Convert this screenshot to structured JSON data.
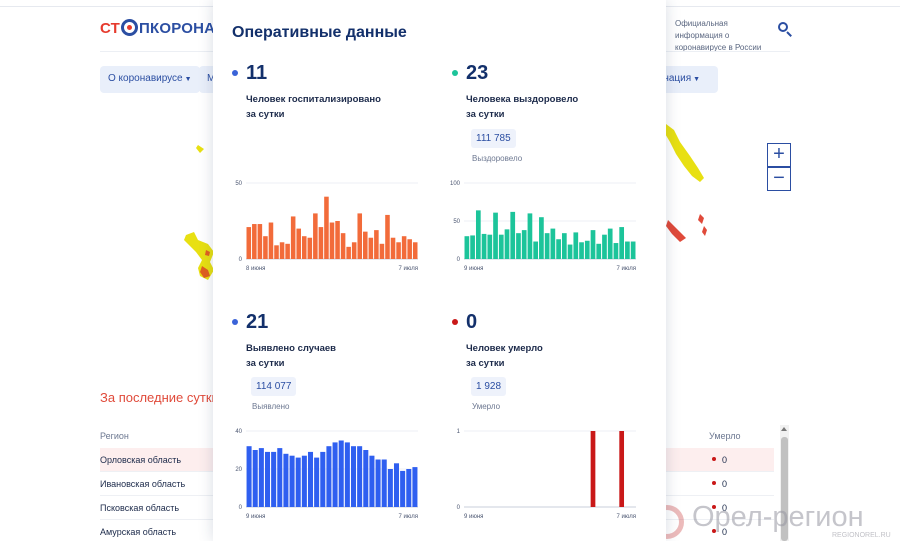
{
  "header": {
    "logo_prefix": "СТ",
    "logo_suffix": "ПКОРОНАВ",
    "official_info": "Официальная информация о коронавирусе в России"
  },
  "nav": {
    "about": "О коронавирусе",
    "m": "М",
    "vaccination": "цинация"
  },
  "map": {
    "zoom_in": "+",
    "zoom_out": "−"
  },
  "table": {
    "section_title": "За последние сутки",
    "col_region": "Регион",
    "col_deaths": "Умерло",
    "rows": [
      {
        "region": "Орловская область",
        "deaths": "0",
        "highlight": true
      },
      {
        "region": "Ивановская область",
        "deaths": "0",
        "highlight": false
      },
      {
        "region": "Псковская область",
        "deaths": "0",
        "highlight": false
      },
      {
        "region": "Амурская область",
        "deaths": "0",
        "highlight": false
      }
    ]
  },
  "popup": {
    "title": "Оперативные данные",
    "stats": [
      {
        "number": "11",
        "desc_line1": "Человек госпитализировано",
        "desc_line2": "за сутки",
        "total": "",
        "total_caption": "",
        "color": "#3a63d8"
      },
      {
        "number": "23",
        "desc_line1": "Человека выздоровело",
        "desc_line2": "за сутки",
        "total": "111 785",
        "total_caption": "Выздоровело",
        "color": "#1cc49a"
      },
      {
        "number": "21",
        "desc_line1": "Выявлено случаев",
        "desc_line2": "за сутки",
        "total": "114 077",
        "total_caption": "Выявлено",
        "color": "#3a63d8"
      },
      {
        "number": "0",
        "desc_line1": "Человек умерло",
        "desc_line2": "за сутки",
        "total": "1 928",
        "total_caption": "Умерло",
        "color": "#c91818"
      }
    ]
  },
  "watermark": {
    "text": "Орел-регион",
    "sub": "REGIONOREL.RU"
  },
  "chart_data": [
    {
      "type": "bar",
      "ylim": [
        0,
        50
      ],
      "yticks": [
        "50",
        "0"
      ],
      "x_start": "8 июня",
      "x_end": "7 июля",
      "color": "#f26b3a",
      "values": [
        21,
        23,
        23,
        15,
        24,
        9,
        11,
        10,
        28,
        20,
        15,
        14,
        30,
        21,
        41,
        24,
        25,
        17,
        8,
        11,
        30,
        18,
        14,
        19,
        10,
        29,
        14,
        11,
        15,
        13,
        11
      ]
    },
    {
      "type": "bar",
      "ylim": [
        0,
        100
      ],
      "yticks": [
        "100",
        "50",
        "0"
      ],
      "x_start": "9 июня",
      "x_end": "7 июля",
      "color": "#1cc49a",
      "values": [
        30,
        31,
        64,
        33,
        32,
        61,
        32,
        39,
        62,
        34,
        38,
        60,
        23,
        55,
        34,
        40,
        26,
        34,
        19,
        35,
        22,
        24,
        38,
        20,
        32,
        40,
        21,
        42,
        23,
        23
      ]
    },
    {
      "type": "bar",
      "ylim": [
        0,
        40
      ],
      "yticks": [
        "40",
        "20",
        "0"
      ],
      "x_start": "9 июня",
      "x_end": "7 июля",
      "color": "#2f5ff0",
      "values": [
        32,
        30,
        31,
        29,
        29,
        31,
        28,
        27,
        26,
        27,
        29,
        26,
        29,
        32,
        34,
        35,
        34,
        32,
        32,
        30,
        27,
        25,
        25,
        20,
        23,
        19,
        20,
        21
      ]
    },
    {
      "type": "bar",
      "ylim": [
        0,
        1
      ],
      "yticks": [
        "1",
        "0"
      ],
      "x_start": "9 июня",
      "x_end": "7 июля",
      "color": "#c91818",
      "values": [
        0,
        0,
        0,
        0,
        0,
        0,
        0,
        0,
        0,
        0,
        0,
        0,
        0,
        0,
        0,
        0,
        0,
        0,
        0,
        0,
        0,
        0,
        1,
        0,
        0,
        0,
        0,
        1,
        0,
        0
      ]
    }
  ]
}
